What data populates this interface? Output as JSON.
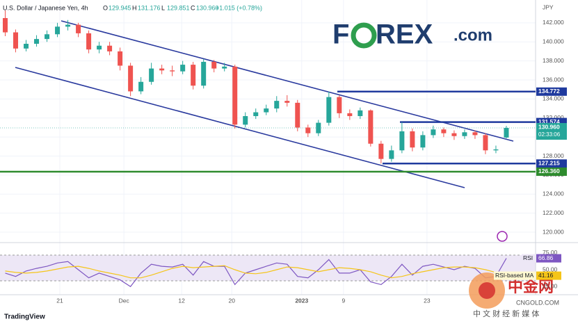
{
  "header": {
    "symbol": "U.S. Dollar / Japanese Yen, 4h",
    "ohlc": [
      {
        "key": "O",
        "value": "129.945"
      },
      {
        "key": "H",
        "value": "131.176"
      },
      {
        "key": "L",
        "value": "129.851"
      },
      {
        "key": "C",
        "value": "130.960"
      }
    ],
    "change": "+1.015 (+0.78%)"
  },
  "logo": {
    "left": "F",
    "right": "REX",
    "suffix": ".com"
  },
  "brand": "TradingView",
  "watermark": {
    "name": "中金网",
    "site": "CNGOLD.COM",
    "tagline": "中 文 财 经 新 媒 体"
  },
  "chart_data": [
    {
      "type": "candlestick",
      "y_axis_label": "JPY",
      "countdown": "02:33:06",
      "up_color": "#26a69a",
      "down_color": "#ef5350",
      "grid": true,
      "ylim": [
        119.2,
        144.4
      ],
      "yticks": [
        {
          "value": 120,
          "label": "120.000"
        },
        {
          "value": 122,
          "label": "122.000"
        },
        {
          "value": 124,
          "label": "124.000"
        },
        {
          "value": 126,
          "label": "126.000"
        },
        {
          "value": 128,
          "label": "128.000"
        },
        {
          "value": 130,
          "label": "130.000"
        },
        {
          "value": 132,
          "label": "132.000"
        },
        {
          "value": 134,
          "label": "134.000"
        },
        {
          "value": 136,
          "label": "136.000"
        },
        {
          "value": 138,
          "label": "138.000"
        },
        {
          "value": 140,
          "label": "140.000"
        },
        {
          "value": 142,
          "label": "142.000"
        }
      ],
      "xlim": [
        -0.5,
        50.8
      ],
      "xticks": [
        {
          "value": 5.23,
          "label": "21"
        },
        {
          "value": 11.37,
          "label": "Dec"
        },
        {
          "value": 16.9,
          "label": "12"
        },
        {
          "value": 21.7,
          "label": "20"
        },
        {
          "value": 28.4,
          "label": "2023"
        },
        {
          "value": 32.4,
          "label": "9"
        },
        {
          "value": 40.4,
          "label": "23"
        }
      ],
      "open": [
        142.5,
        141.0,
        139.3,
        139.8,
        140.3,
        140.8,
        141.6,
        141.8,
        140.9,
        139.2,
        139.6,
        139.0,
        137.5,
        134.8,
        135.8,
        137.2,
        137.0,
        136.9,
        137.6,
        135.4,
        137.9,
        137.2,
        137.4,
        131.3,
        132.2,
        132.6,
        133.0,
        133.8,
        133.6,
        131.0,
        130.4,
        131.5,
        134.2,
        132.5,
        132.2,
        132.8,
        129.3,
        127.7,
        128.6,
        130.6,
        128.9,
        130.2,
        130.8,
        130.4,
        130.1,
        130.5,
        130.2,
        128.6,
        129.945
      ],
      "high": [
        143.3,
        141.3,
        140.2,
        140.7,
        141.2,
        142.0,
        142.3,
        142.0,
        141.2,
        140.0,
        140.0,
        139.4,
        137.8,
        136.3,
        137.8,
        137.6,
        137.5,
        138.0,
        137.9,
        138.2,
        138.1,
        137.8,
        137.6,
        132.6,
        133.0,
        133.4,
        134.3,
        134.4,
        133.9,
        131.3,
        131.8,
        134.77,
        134.4,
        132.9,
        133.1,
        132.9,
        129.6,
        129.1,
        131.57,
        130.9,
        130.6,
        131.2,
        131.0,
        130.7,
        130.8,
        130.7,
        130.4,
        129.1,
        131.176
      ],
      "low": [
        140.6,
        138.9,
        139.0,
        139.5,
        140.0,
        140.5,
        141.2,
        140.5,
        138.8,
        138.8,
        138.6,
        137.0,
        134.3,
        134.5,
        135.5,
        136.6,
        136.4,
        136.6,
        135.0,
        135.1,
        136.8,
        136.9,
        130.9,
        131.0,
        131.9,
        132.3,
        132.6,
        133.2,
        130.6,
        130.0,
        130.1,
        131.2,
        132.0,
        131.8,
        131.9,
        129.0,
        127.215,
        127.4,
        128.3,
        128.5,
        128.6,
        129.9,
        130.0,
        129.7,
        129.8,
        129.8,
        128.2,
        128.3,
        129.851
      ],
      "close": [
        141.0,
        139.3,
        139.8,
        140.3,
        140.8,
        141.6,
        141.8,
        140.9,
        139.2,
        139.6,
        139.0,
        137.5,
        134.8,
        135.8,
        137.2,
        137.0,
        136.9,
        137.6,
        135.4,
        137.9,
        137.2,
        137.4,
        131.3,
        132.2,
        132.6,
        133.0,
        133.8,
        133.6,
        131.0,
        130.4,
        131.5,
        134.2,
        132.5,
        132.2,
        132.8,
        129.3,
        127.7,
        128.6,
        130.6,
        128.9,
        130.2,
        130.8,
        130.4,
        130.1,
        130.5,
        130.2,
        128.6,
        128.7,
        130.96
      ],
      "last_price": {
        "value": 130.96,
        "label": "130.960"
      },
      "levels": [
        {
          "value": 134.772,
          "label": "134.772",
          "color": "#1f3a9e"
        },
        {
          "value": 131.574,
          "label": "131.574",
          "color": "#1f3a9e"
        },
        {
          "value": 127.215,
          "label": "127.215",
          "color": "#1f3a9e"
        },
        {
          "value": 126.36,
          "label": "126.360",
          "color": "#2e8b2e"
        }
      ]
    },
    {
      "type": "line",
      "ylim": [
        13,
        87
      ],
      "yticks": [
        {
          "value": 75,
          "label": "75.00"
        },
        {
          "value": 50,
          "label": "50.00"
        },
        {
          "value": 25,
          "label": "25.00"
        }
      ],
      "series": [
        {
          "name": "RSI",
          "color": "#7e57c2",
          "values": [
            45,
            40,
            48,
            52,
            55,
            60,
            62,
            50,
            38,
            45,
            40,
            35,
            25,
            45,
            58,
            55,
            54,
            58,
            42,
            62,
            55,
            55,
            28,
            45,
            50,
            55,
            60,
            58,
            40,
            38,
            50,
            65,
            45,
            45,
            50,
            32,
            28,
            40,
            58,
            42,
            55,
            58,
            54,
            50,
            55,
            52,
            38,
            40,
            66.86
          ]
        },
        {
          "name": "RSI-based MA",
          "color": "#f5c518",
          "values": [
            48,
            46,
            45,
            46,
            48,
            51,
            54,
            55,
            52,
            48,
            45,
            42,
            38,
            38,
            42,
            47,
            52,
            55,
            53,
            54,
            55,
            56,
            50,
            45,
            44,
            46,
            50,
            54,
            53,
            50,
            47,
            50,
            53,
            52,
            50,
            47,
            42,
            38,
            40,
            44,
            47,
            50,
            53,
            54,
            54,
            53,
            50,
            46,
            41.16
          ]
        }
      ]
    }
  ]
}
